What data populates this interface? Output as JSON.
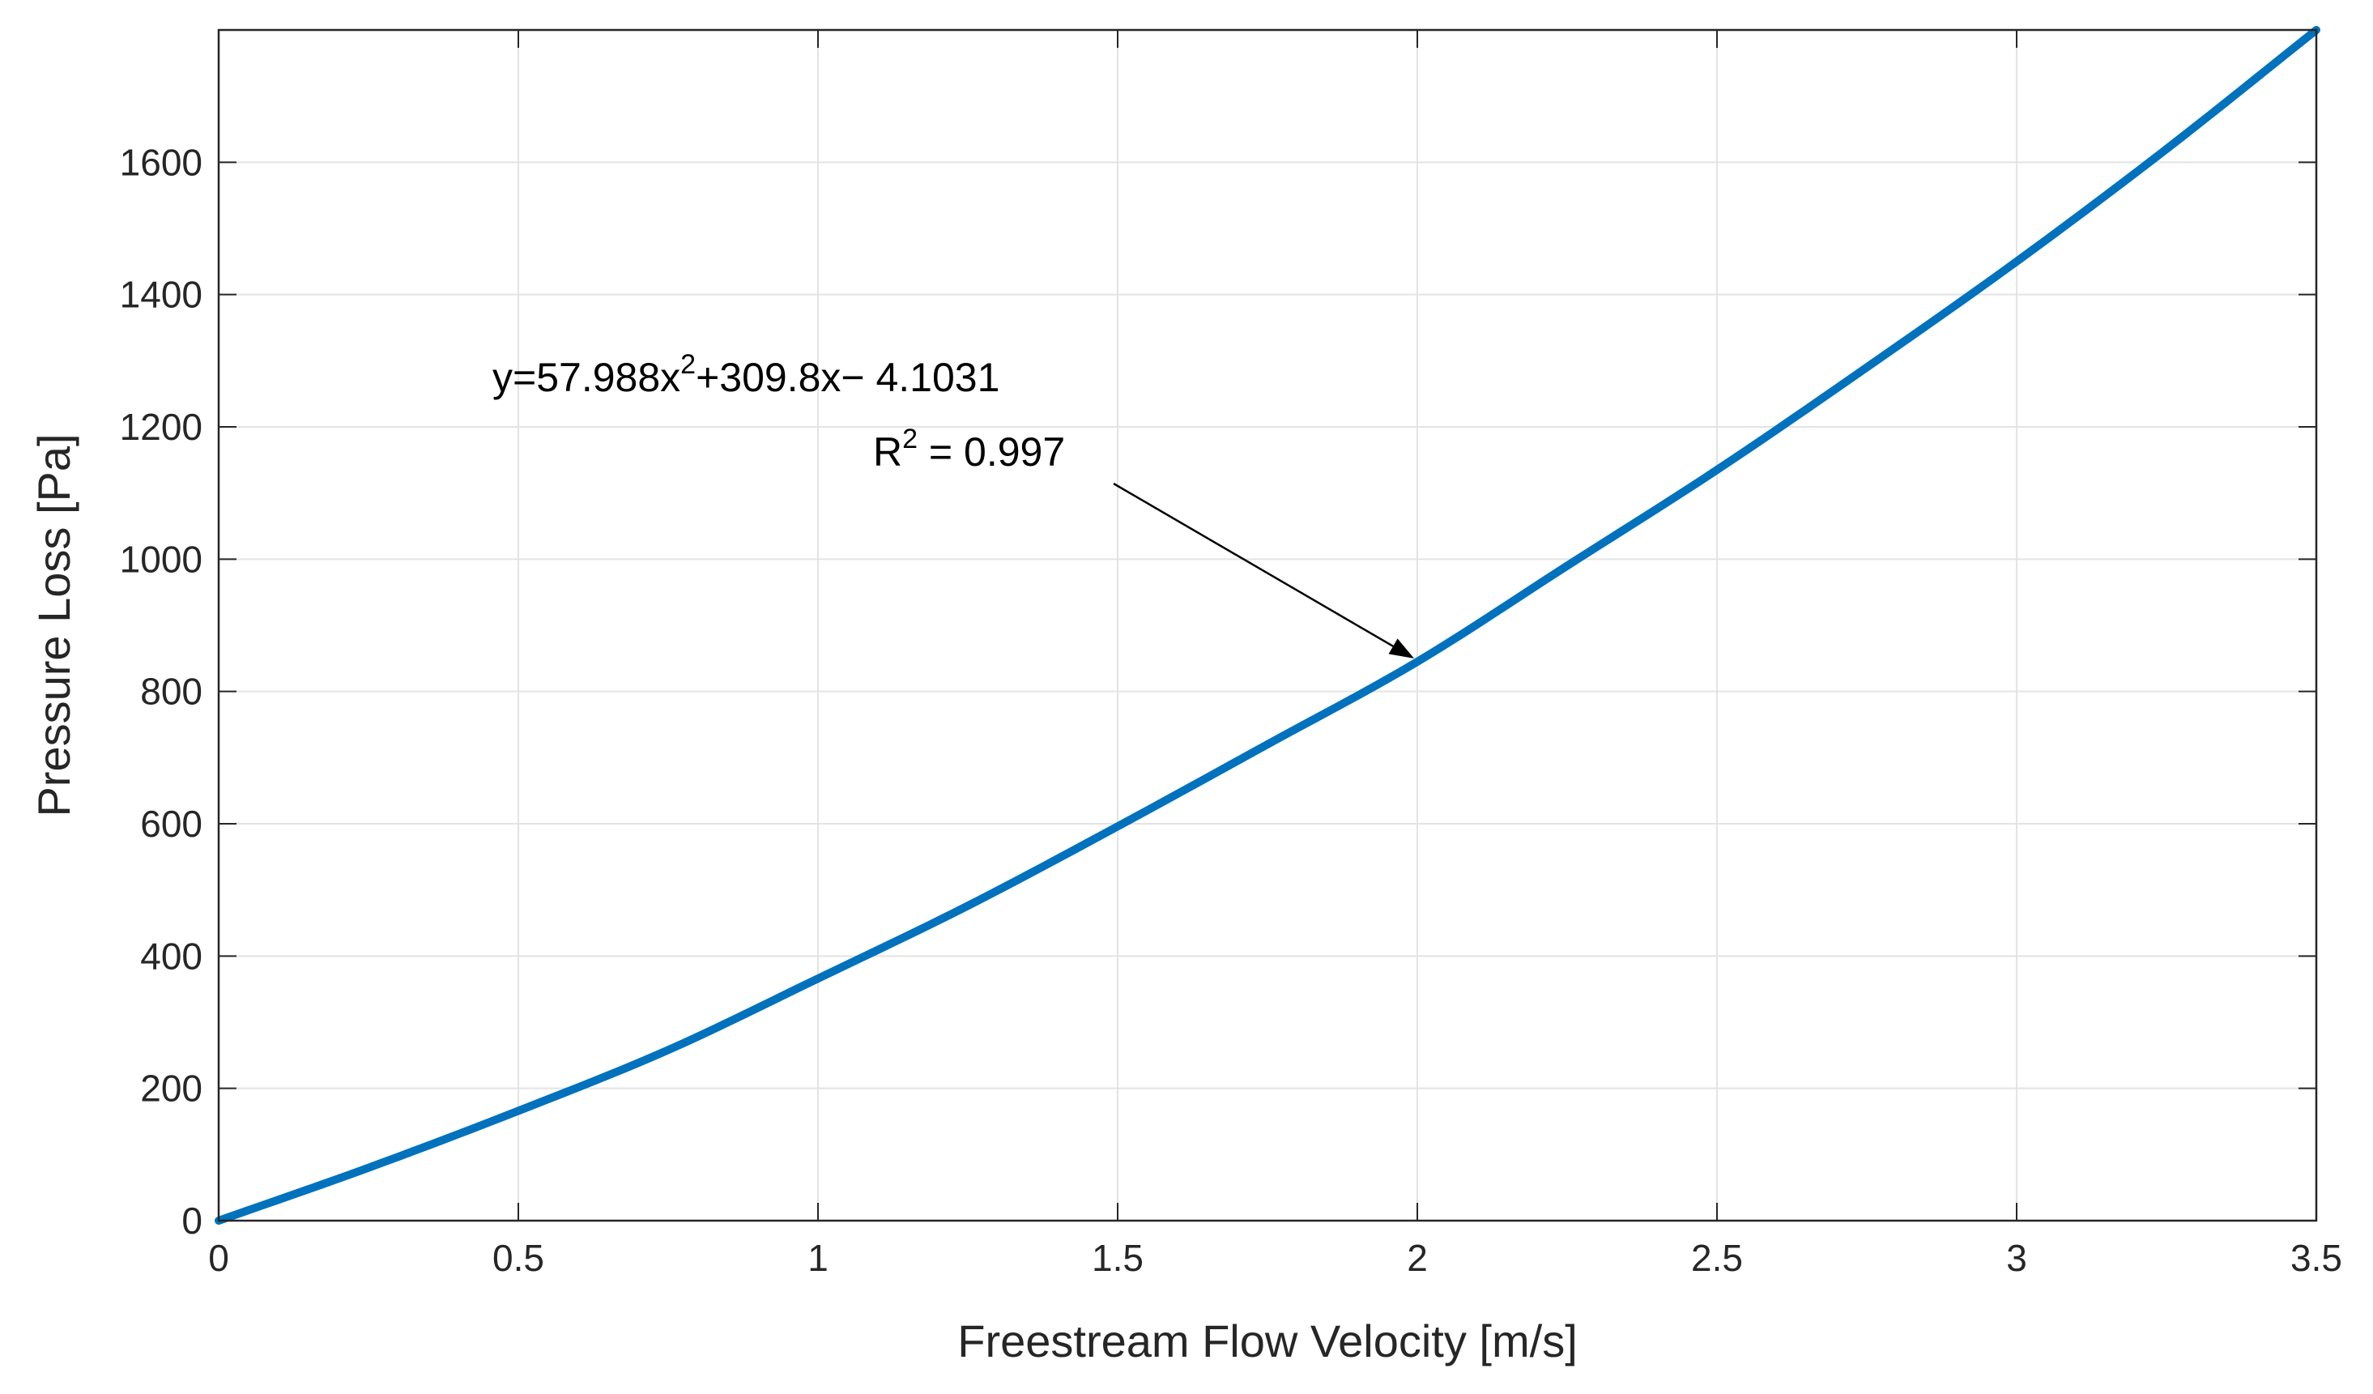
{
  "chart_data": {
    "type": "line",
    "title": "",
    "xlabel": "Freestream Flow Velocity [m/s]",
    "ylabel": "Pressure Loss [Pa]",
    "xlim": [
      0,
      3.5
    ],
    "ylim": [
      0,
      1800
    ],
    "grid": true,
    "x_ticks": [
      0,
      0.5,
      1,
      1.5,
      2,
      2.5,
      3,
      3.5
    ],
    "x_tick_labels": [
      "0",
      "0.5",
      "1",
      "1.5",
      "2",
      "2.5",
      "3",
      "3.5"
    ],
    "y_ticks": [
      0,
      200,
      400,
      600,
      800,
      1000,
      1200,
      1400,
      1600
    ],
    "y_tick_labels": [
      "0",
      "200",
      "400",
      "600",
      "800",
      "1000",
      "1200",
      "1400",
      "1600"
    ],
    "series": [
      {
        "name": "Pressure Loss",
        "color": "#0072BD",
        "x": [
          0,
          0.25,
          0.5,
          0.75,
          1,
          1.25,
          1.5,
          1.75,
          2,
          2.25,
          2.5,
          2.75,
          3,
          3.25,
          3.5
        ],
        "y": [
          0,
          80,
          166,
          258,
          366,
          476,
          596,
          720,
          845,
          990,
          1135,
          1290,
          1450,
          1620,
          1800
        ]
      }
    ],
    "annotation": {
      "equation_prefix": "y=57.988x",
      "equation_sup": "2",
      "equation_suffix": "+309.8x− 4.1031",
      "r2_prefix": "R",
      "r2_sup": "2",
      "r2_suffix": " = 0.997",
      "arrow_target": {
        "x": 2,
        "y": 845
      }
    }
  }
}
